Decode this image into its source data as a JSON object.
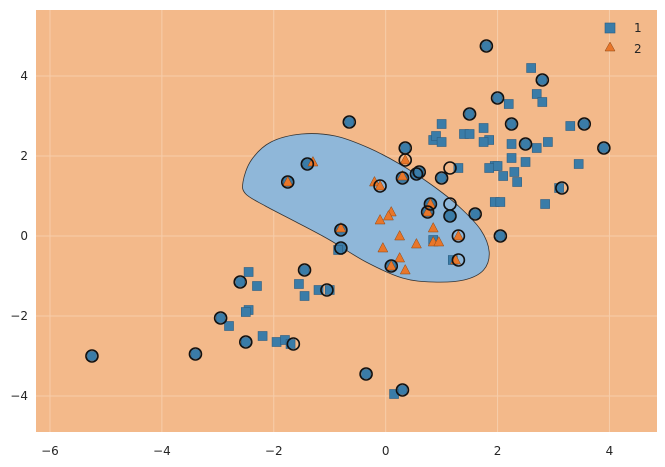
{
  "chart_data": {
    "type": "scatter",
    "title": "",
    "xlabel": "",
    "ylabel": "",
    "xlim": [
      -6.25,
      4.85
    ],
    "ylim": [
      -4.9,
      5.65
    ],
    "x_ticks": [
      -6,
      -4,
      -2,
      0,
      2,
      4
    ],
    "y_ticks": [
      -4,
      -2,
      0,
      2,
      4
    ],
    "x_tick_labels": [
      "−6",
      "−4",
      "−2",
      "0",
      "2",
      "4"
    ],
    "y_tick_labels": [
      "−4",
      "−2",
      "0",
      "2",
      "4"
    ],
    "grid": true,
    "legend_position": "top-right",
    "colors": {
      "background_region": "#f3b98a",
      "class2_region": "#8fb7d9",
      "class1_marker": "#3a7ca8",
      "class2_marker": "#e8762a",
      "grid": "#f7cdaa"
    },
    "decision_region": {
      "class_inside": "2",
      "class_outside": "1",
      "boundary": [
        [
          -2.55,
          1.35
        ],
        [
          -2.4,
          1.9
        ],
        [
          -2.05,
          2.35
        ],
        [
          -1.5,
          2.55
        ],
        [
          -0.9,
          2.5
        ],
        [
          -0.3,
          2.2
        ],
        [
          0.25,
          1.8
        ],
        [
          0.8,
          1.3
        ],
        [
          1.3,
          0.75
        ],
        [
          1.7,
          0.15
        ],
        [
          1.85,
          -0.4
        ],
        [
          1.75,
          -0.85
        ],
        [
          1.4,
          -1.1
        ],
        [
          0.85,
          -1.15
        ],
        [
          0.3,
          -1.05
        ],
        [
          -0.35,
          -0.65
        ],
        [
          -1.0,
          -0.1
        ],
        [
          -1.6,
          0.35
        ],
        [
          -2.15,
          0.75
        ],
        [
          -2.5,
          1.05
        ]
      ]
    },
    "series": [
      {
        "name": "1",
        "marker": "square",
        "points": [
          [
            1.8,
            4.75
          ],
          [
            2.6,
            4.2
          ],
          [
            2.8,
            3.9
          ],
          [
            2.0,
            3.45
          ],
          [
            2.2,
            3.3
          ],
          [
            2.7,
            3.55
          ],
          [
            2.8,
            3.35
          ],
          [
            1.5,
            3.05
          ],
          [
            1.0,
            2.8
          ],
          [
            1.75,
            2.7
          ],
          [
            2.25,
            2.8
          ],
          [
            3.3,
            2.75
          ],
          [
            3.55,
            2.8
          ],
          [
            1.4,
            2.55
          ],
          [
            1.5,
            2.55
          ],
          [
            0.85,
            2.4
          ],
          [
            0.9,
            2.5
          ],
          [
            1.0,
            2.35
          ],
          [
            1.85,
            2.4
          ],
          [
            1.75,
            2.35
          ],
          [
            2.25,
            2.3
          ],
          [
            2.5,
            2.3
          ],
          [
            2.7,
            2.2
          ],
          [
            2.9,
            2.35
          ],
          [
            2.25,
            1.95
          ],
          [
            2.5,
            1.85
          ],
          [
            1.95,
            1.75
          ],
          [
            2.0,
            1.75
          ],
          [
            2.3,
            1.6
          ],
          [
            1.85,
            1.7
          ],
          [
            2.1,
            1.5
          ],
          [
            2.35,
            1.35
          ],
          [
            3.1,
            1.2
          ],
          [
            3.45,
            1.8
          ],
          [
            3.9,
            2.2
          ],
          [
            1.3,
            1.7
          ],
          [
            1.6,
            0.55
          ],
          [
            1.95,
            0.85
          ],
          [
            2.05,
            0.85
          ],
          [
            2.05,
            0.0
          ],
          [
            2.85,
            0.8
          ],
          [
            -1.75,
            1.35
          ],
          [
            -1.4,
            1.8
          ],
          [
            -0.65,
            2.85
          ],
          [
            -0.8,
            0.15
          ],
          [
            -0.8,
            -0.3
          ],
          [
            -1.45,
            -0.85
          ],
          [
            -1.55,
            -1.2
          ],
          [
            -1.45,
            -1.5
          ],
          [
            -1.2,
            -1.35
          ],
          [
            -1.0,
            -1.35
          ],
          [
            -2.45,
            -0.9
          ],
          [
            -2.6,
            -1.15
          ],
          [
            -2.3,
            -1.25
          ],
          [
            -2.45,
            -1.85
          ],
          [
            -2.5,
            -1.9
          ],
          [
            -2.95,
            -2.05
          ],
          [
            -2.8,
            -2.25
          ],
          [
            -2.2,
            -2.5
          ],
          [
            -2.5,
            -2.65
          ],
          [
            -1.95,
            -2.65
          ],
          [
            -1.8,
            -2.6
          ],
          [
            -1.7,
            -2.7
          ],
          [
            -3.4,
            -2.95
          ],
          [
            -5.25,
            -3.0
          ],
          [
            -0.35,
            -3.45
          ],
          [
            0.3,
            -3.85
          ],
          [
            0.15,
            -3.95
          ],
          [
            0.3,
            1.45
          ],
          [
            0.35,
            2.2
          ],
          [
            0.55,
            1.55
          ],
          [
            0.6,
            1.6
          ],
          [
            1.0,
            1.45
          ],
          [
            0.8,
            0.8
          ],
          [
            1.15,
            0.5
          ],
          [
            0.75,
            0.6
          ],
          [
            0.1,
            -0.75
          ],
          [
            1.2,
            -0.6
          ],
          [
            0.85,
            -0.1
          ],
          [
            -0.85,
            -0.35
          ]
        ],
        "outlined_points": [
          [
            1.8,
            4.75
          ],
          [
            2.8,
            3.9
          ],
          [
            2.0,
            3.45
          ],
          [
            1.5,
            3.05
          ],
          [
            3.55,
            2.8
          ],
          [
            2.25,
            2.8
          ],
          [
            2.5,
            2.3
          ],
          [
            3.9,
            2.2
          ],
          [
            3.15,
            1.2
          ],
          [
            1.6,
            0.55
          ],
          [
            2.05,
            0.0
          ],
          [
            -0.65,
            2.85
          ],
          [
            -1.75,
            1.35
          ],
          [
            -1.4,
            1.8
          ],
          [
            0.35,
            2.2
          ],
          [
            0.3,
            1.45
          ],
          [
            0.55,
            1.55
          ],
          [
            0.6,
            1.6
          ],
          [
            1.0,
            1.45
          ],
          [
            1.15,
            1.7
          ],
          [
            1.15,
            0.8
          ],
          [
            1.15,
            0.5
          ],
          [
            0.8,
            0.8
          ],
          [
            0.75,
            0.6
          ],
          [
            1.3,
            0.0
          ],
          [
            1.3,
            -0.6
          ],
          [
            -0.8,
            0.15
          ],
          [
            -0.8,
            -0.3
          ],
          [
            -1.45,
            -0.85
          ],
          [
            -1.05,
            -1.35
          ],
          [
            -2.6,
            -1.15
          ],
          [
            -2.95,
            -2.05
          ],
          [
            -2.5,
            -2.65
          ],
          [
            -1.65,
            -2.7
          ],
          [
            -3.4,
            -2.95
          ],
          [
            -5.25,
            -3.0
          ],
          [
            -0.35,
            -3.45
          ],
          [
            0.3,
            -3.85
          ],
          [
            0.1,
            -0.75
          ],
          [
            0.35,
            1.9
          ],
          [
            -0.1,
            1.25
          ]
        ]
      },
      {
        "name": "2",
        "marker": "triangle",
        "points": [
          [
            -1.75,
            1.35
          ],
          [
            -1.3,
            1.85
          ],
          [
            -0.2,
            1.35
          ],
          [
            -0.1,
            1.25
          ],
          [
            0.35,
            1.9
          ],
          [
            0.3,
            1.5
          ],
          [
            0.1,
            0.6
          ],
          [
            0.05,
            0.5
          ],
          [
            -0.1,
            0.4
          ],
          [
            0.8,
            0.8
          ],
          [
            0.75,
            0.6
          ],
          [
            -0.8,
            0.2
          ],
          [
            0.25,
            0.0
          ],
          [
            0.85,
            0.2
          ],
          [
            1.3,
            0.0
          ],
          [
            0.55,
            -0.2
          ],
          [
            0.85,
            -0.15
          ],
          [
            0.95,
            -0.15
          ],
          [
            -0.05,
            -0.3
          ],
          [
            0.25,
            -0.55
          ],
          [
            0.35,
            -0.85
          ],
          [
            0.1,
            -0.75
          ],
          [
            1.25,
            -0.6
          ]
        ]
      }
    ]
  }
}
